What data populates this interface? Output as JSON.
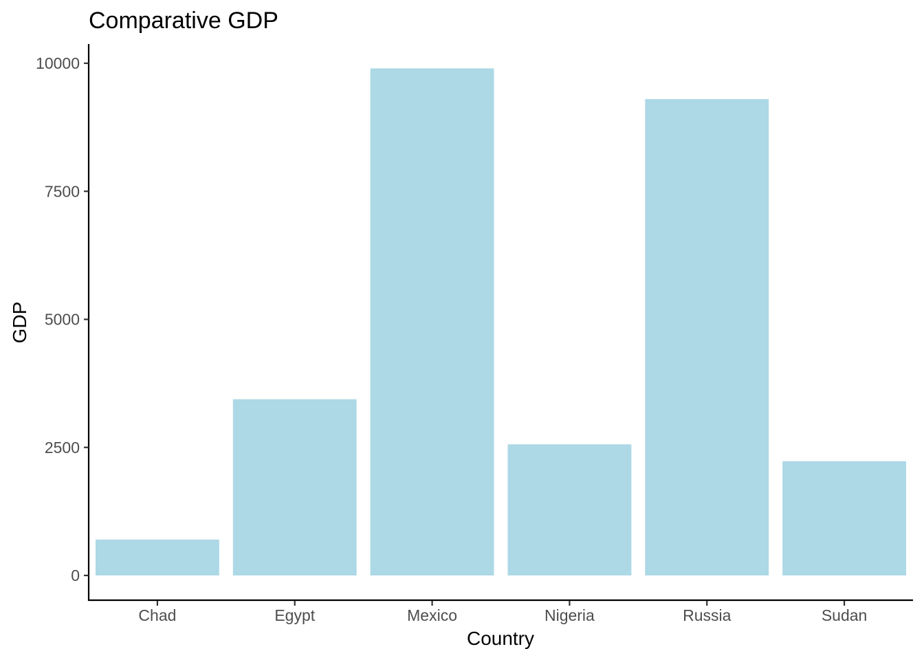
{
  "chart_data": {
    "type": "bar",
    "title": "Comparative GDP",
    "xlabel": "Country",
    "ylabel": "GDP",
    "categories": [
      "Chad",
      "Egypt",
      "Mexico",
      "Nigeria",
      "Russia",
      "Sudan"
    ],
    "values": [
      700,
      3440,
      9900,
      2560,
      9300,
      2230
    ],
    "ylim": [
      0,
      10000
    ],
    "yticks": [
      "0",
      "2500",
      "5000",
      "7500",
      "10000"
    ],
    "bar_color": "#add8e6",
    "grid": false,
    "legend": "none"
  }
}
